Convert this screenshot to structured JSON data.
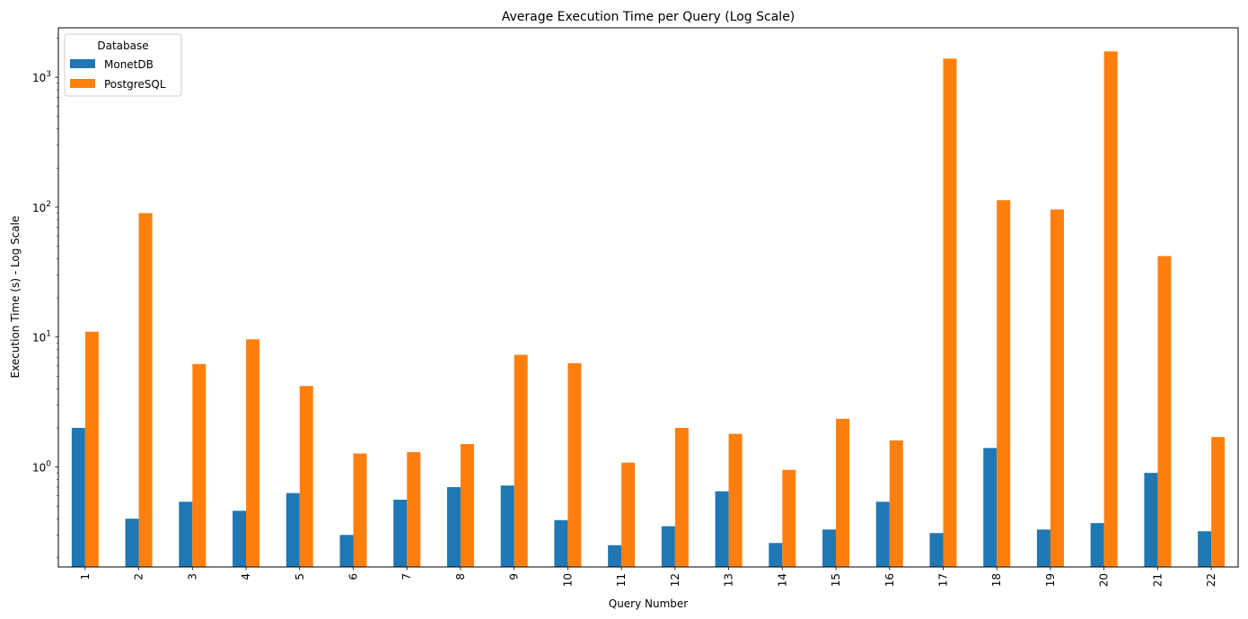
{
  "chart_data": {
    "type": "bar",
    "title": "Average Execution Time per Query (Log Scale)",
    "xlabel": "Query Number",
    "ylabel": "Execution Time (s) - Log Scale",
    "yscale": "log",
    "ylim": [
      0.17,
      2400
    ],
    "y_major_ticks": [
      {
        "value": 1,
        "label_base": "10",
        "label_exp": "0"
      },
      {
        "value": 10,
        "label_base": "10",
        "label_exp": "1"
      },
      {
        "value": 100,
        "label_base": "10",
        "label_exp": "2"
      },
      {
        "value": 1000,
        "label_base": "10",
        "label_exp": "3"
      }
    ],
    "grid": false,
    "legend": {
      "title": "Database",
      "placement": "top-left"
    },
    "categories": [
      "1",
      "2",
      "3",
      "4",
      "5",
      "6",
      "7",
      "8",
      "9",
      "10",
      "11",
      "12",
      "13",
      "14",
      "15",
      "16",
      "17",
      "18",
      "19",
      "20",
      "21",
      "22"
    ],
    "series": [
      {
        "name": "MonetDB",
        "color": "#1f77b4",
        "values": [
          2.0,
          0.4,
          0.54,
          0.46,
          0.63,
          0.3,
          0.56,
          0.7,
          0.72,
          0.39,
          0.25,
          0.35,
          0.65,
          0.26,
          0.33,
          0.54,
          0.31,
          1.4,
          0.33,
          0.37,
          0.9,
          0.32
        ]
      },
      {
        "name": "PostgreSQL",
        "color": "#ff7f0e",
        "values": [
          11,
          90,
          6.2,
          9.6,
          4.2,
          1.27,
          1.3,
          1.5,
          7.3,
          6.3,
          1.08,
          2.0,
          1.8,
          0.95,
          2.35,
          1.6,
          1390,
          113,
          96,
          1580,
          42,
          1.7
        ]
      }
    ]
  }
}
